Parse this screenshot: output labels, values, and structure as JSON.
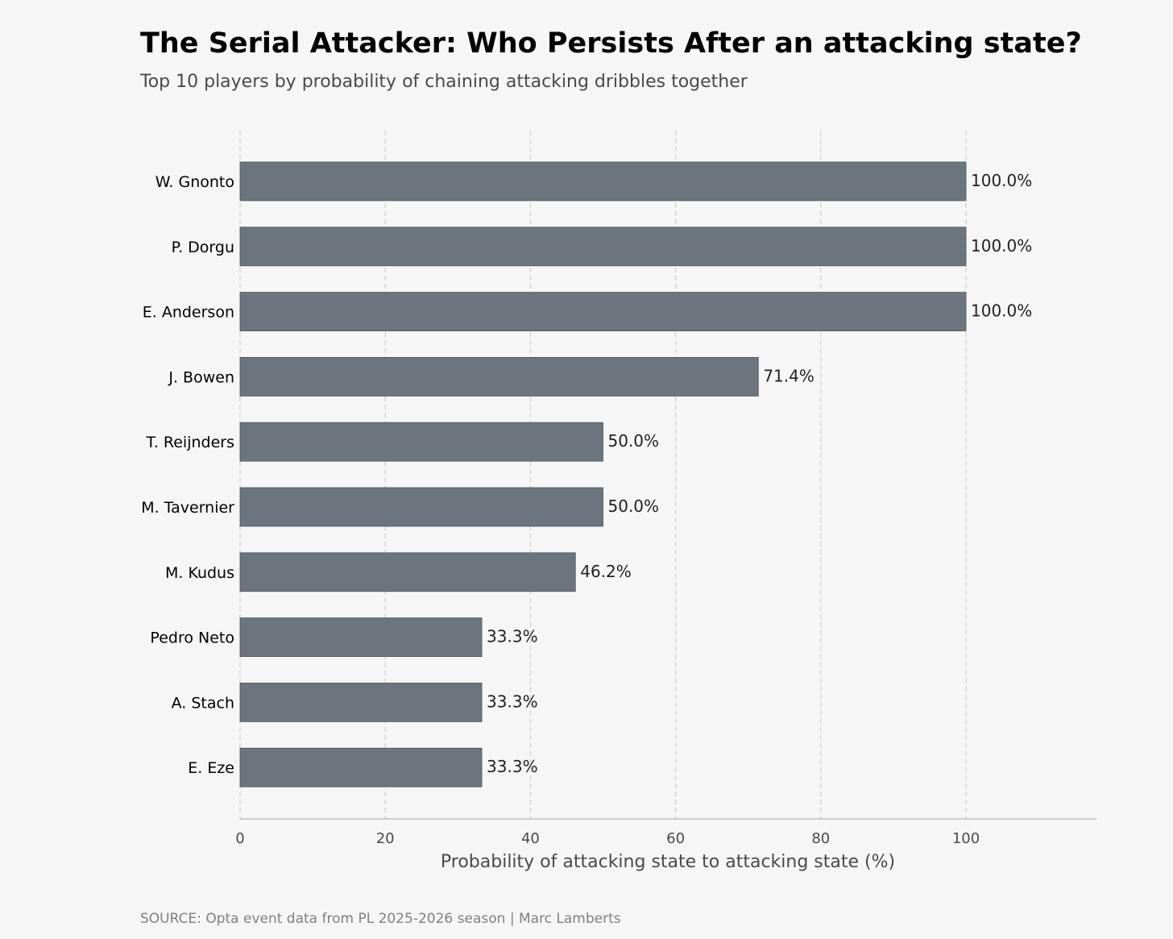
{
  "title": "The Serial Attacker: Who Persists After an attacking state?",
  "subtitle": "Top 10 players by probability of chaining attacking dribbles together",
  "source": "SOURCE: Opta event data from PL 2025-2026 season | Marc Lamberts",
  "colors": {
    "bar": "#6c747e",
    "bar_edge": "#4f565f",
    "grid": "#d0d0d0",
    "axis": "#bdbdbd",
    "background": "#f6f6f6"
  },
  "chart_data": {
    "type": "bar",
    "orientation": "horizontal",
    "categories": [
      "W. Gnonto",
      "P. Dorgu",
      "E. Anderson",
      "J. Bowen",
      "T. Reijnders",
      "M. Tavernier",
      "M. Kudus",
      "Pedro Neto",
      "A. Stach",
      "E. Eze"
    ],
    "values": [
      100.0,
      100.0,
      100.0,
      71.4,
      50.0,
      50.0,
      46.2,
      33.3,
      33.3,
      33.3
    ],
    "data_labels": [
      "100.0%",
      "100.0%",
      "100.0%",
      "71.4%",
      "50.0%",
      "50.0%",
      "46.2%",
      "33.3%",
      "33.3%",
      "33.3%"
    ],
    "xlabel": "Probability of attacking state to attacking state (%)",
    "ylabel": "",
    "xlim": [
      0,
      118
    ],
    "xticks": [
      0,
      20,
      40,
      60,
      80,
      100
    ],
    "grid": "vertical dashed"
  }
}
